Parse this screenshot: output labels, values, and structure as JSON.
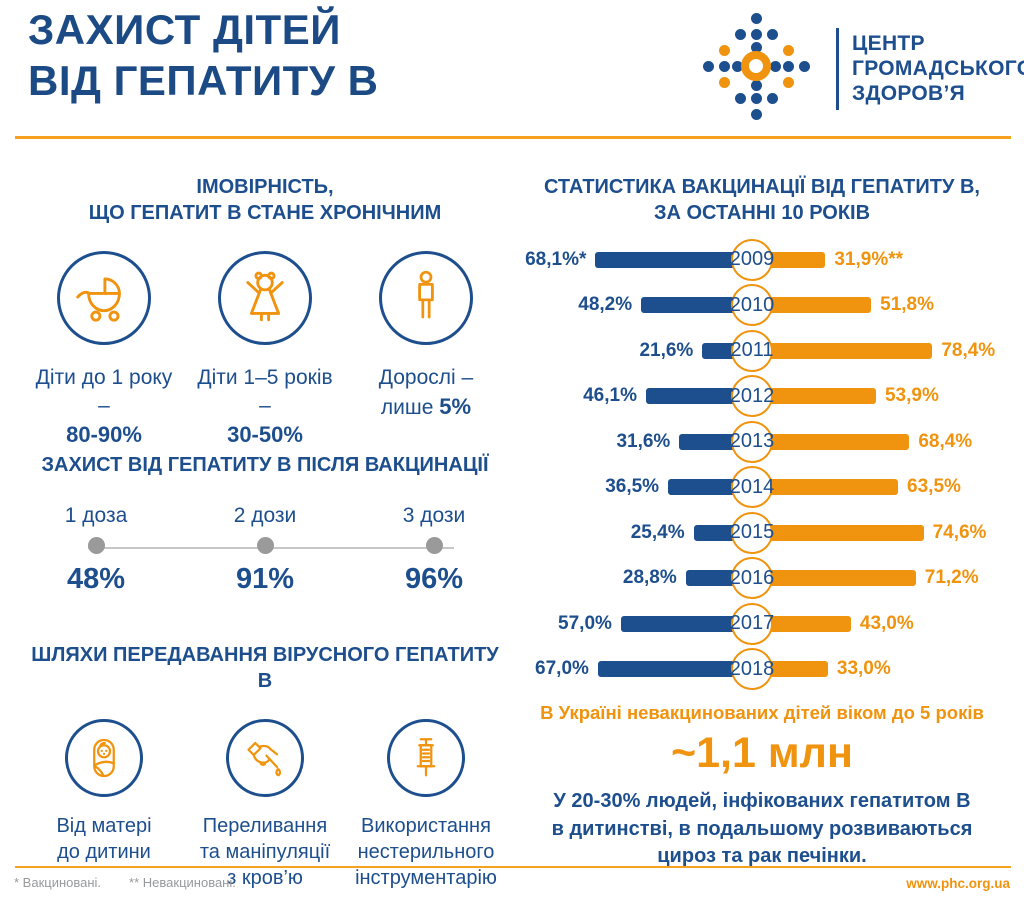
{
  "colors": {
    "blue": "#1d4e8d",
    "orange": "#f0930e",
    "note_gray": "#97999b"
  },
  "header": {
    "title_line1": "ЗАХИСТ ДІТЕЙ",
    "title_line2": "ВІД ГЕПАТИТУ В",
    "logo_lines": [
      "ЦЕНТР",
      "ГРОМАДСЬКОГО",
      "ЗДОРОВ’Я"
    ]
  },
  "chronic_section": {
    "title_line1": "ІМОВІРНІСТЬ,",
    "title_line2": "ЩО ГЕПАТИТ В СТАНЕ ХРОНІЧНИМ",
    "items": [
      {
        "icon": "stroller-icon",
        "line1": "Діти до 1 року –",
        "value_prefix": "",
        "value": "80-90%"
      },
      {
        "icon": "child-icon",
        "line1": "Діти 1–5 років –",
        "value_prefix": "",
        "value": "30-50%"
      },
      {
        "icon": "adult-icon",
        "line1": "Дорослі –",
        "value_prefix": "лише ",
        "value": "5%"
      }
    ]
  },
  "doses_section": {
    "title": "ЗАХИСТ ВІД ГЕПАТИТУ В ПІСЛЯ ВАКЦИНАЦІЇ",
    "steps": [
      {
        "label": "1 доза",
        "value": "48%"
      },
      {
        "label": "2 дози",
        "value": "91%"
      },
      {
        "label": "3 дози",
        "value": "96%"
      }
    ]
  },
  "transmission_section": {
    "title": "ШЛЯХИ ПЕРЕДАВАННЯ ВІРУСНОГО ГЕПАТИТУ В",
    "items": [
      {
        "icon": "swaddled-baby-icon",
        "lines": [
          "Від матері",
          "до дитини"
        ]
      },
      {
        "icon": "blood-hand-icon",
        "lines": [
          "Переливання",
          "та маніпуляції",
          "з кров’ю"
        ]
      },
      {
        "icon": "syringe-icon",
        "lines": [
          "Використання",
          "нестерильного",
          "інструментарію"
        ]
      }
    ]
  },
  "chart_data": {
    "type": "bar",
    "orientation": "horizontal-diverging",
    "title_line1": "СТАТИСТИКА ВАКЦИНАЦІЇ ВІД ГЕПАТИТУ В,",
    "title_line2": "ЗА ОСТАННІ 10 РОКІВ",
    "categories": [
      "2009",
      "2010",
      "2011",
      "2012",
      "2013",
      "2014",
      "2015",
      "2016",
      "2017",
      "2018"
    ],
    "series": [
      {
        "name": "Вакциновані",
        "color": "#1d4e8d",
        "values": [
          68.1,
          48.2,
          21.6,
          46.1,
          31.6,
          36.5,
          25.4,
          28.8,
          57.0,
          67.0
        ],
        "labels": [
          "68,1%*",
          "48,2%",
          "21,6%",
          "46,1%",
          "31,6%",
          "36,5%",
          "25,4%",
          "28,8%",
          "57,0%",
          "67,0%"
        ]
      },
      {
        "name": "Невакциновані",
        "color": "#f0930e",
        "values": [
          31.9,
          51.8,
          78.4,
          53.9,
          68.4,
          63.5,
          74.6,
          71.2,
          43.0,
          33.0
        ],
        "labels": [
          "31,9%**",
          "51,8%",
          "78,4%",
          "53,9%",
          "68,4%",
          "63,5%",
          "74,6%",
          "71,2%",
          "43,0%",
          "33,0%"
        ]
      }
    ],
    "xlim": [
      0,
      100
    ],
    "grid": false,
    "legend": "footnotes"
  },
  "stats_block": {
    "line1": "В Україні невакцинованих дітей віком до 5 років",
    "big_value": "~1,1 млн",
    "paragraph_lines": [
      "У 20-30% людей, інфікованих гепатитом В",
      "в дитинстві, в подальшому розвиваються",
      "цироз та рак печінки."
    ]
  },
  "footer": {
    "note1": "* Вакциновані.",
    "note2": "** Невакциновані.",
    "website": "www.phc.org.ua"
  }
}
